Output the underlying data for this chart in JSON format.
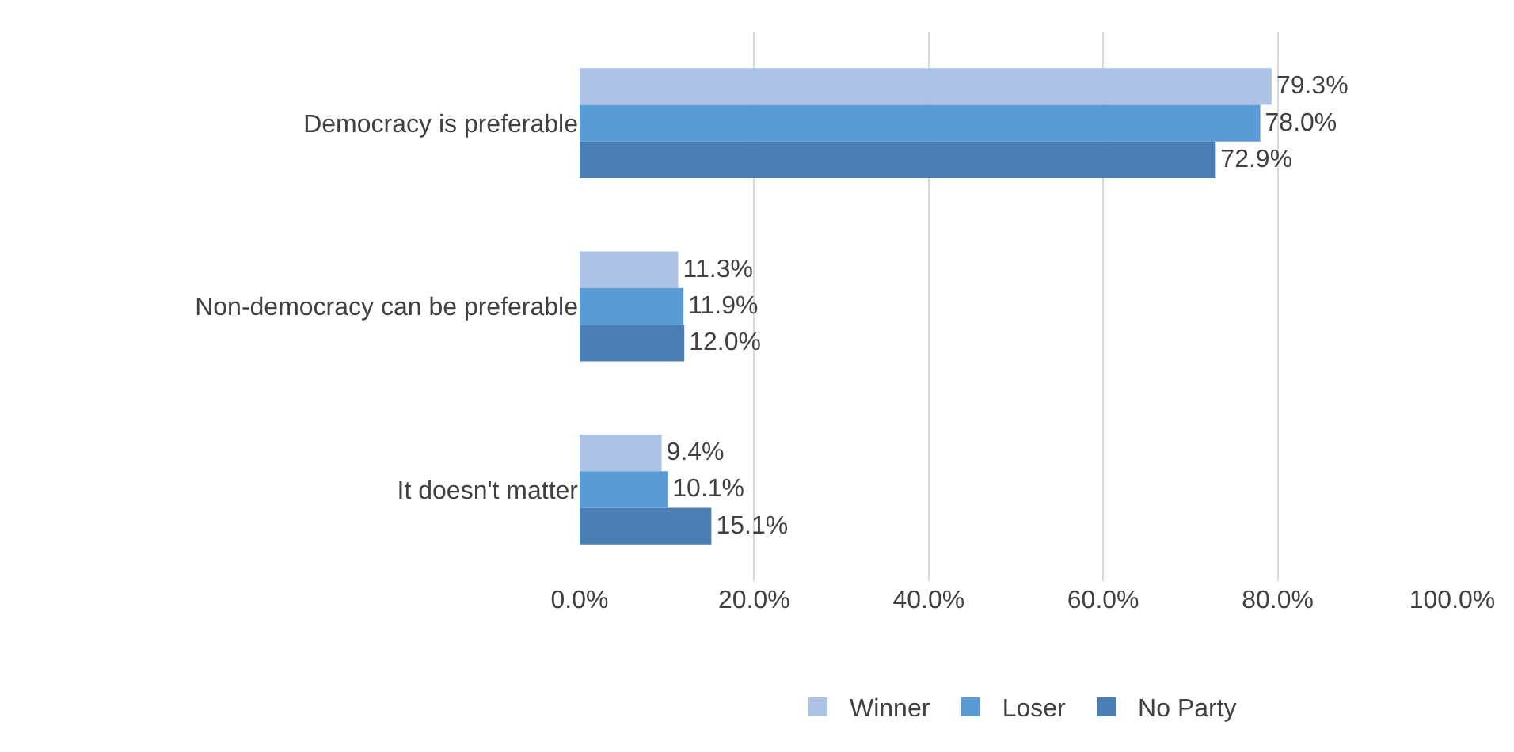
{
  "chart_data": {
    "type": "bar",
    "orientation": "horizontal",
    "categories": [
      "Democracy is preferable",
      "Non-democracy can be preferable",
      "It doesn't matter"
    ],
    "series": [
      {
        "name": "Winner",
        "color": "#adc3e6",
        "values": [
          79.3,
          11.3,
          9.4
        ],
        "value_labels": [
          "79.3%",
          "11.3%",
          "9.4%"
        ]
      },
      {
        "name": "Loser",
        "color": "#5b9bd5",
        "values": [
          78.0,
          11.9,
          10.1
        ],
        "value_labels": [
          "78.0%",
          "11.9%",
          "10.1%"
        ]
      },
      {
        "name": "No Party",
        "color": "#4a7eb4",
        "values": [
          72.9,
          12.0,
          15.1
        ],
        "value_labels": [
          "72.9%",
          "12.0%",
          "15.1%"
        ]
      }
    ],
    "xlim": [
      0,
      100
    ],
    "xticks": [
      {
        "value": 0,
        "label": "0.0%"
      },
      {
        "value": 20,
        "label": "20.0%"
      },
      {
        "value": 40,
        "label": "40.0%"
      },
      {
        "value": 60,
        "label": "60.0%"
      },
      {
        "value": 80,
        "label": "80.0%"
      },
      {
        "value": 100,
        "label": "100.0%"
      }
    ],
    "grid": "x",
    "legend": "bottom"
  }
}
